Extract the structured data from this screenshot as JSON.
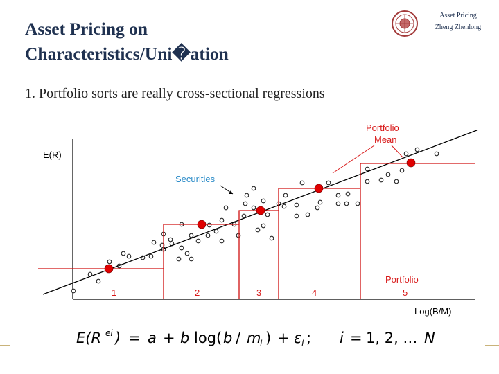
{
  "header": {
    "title_line1": "Asset Pricing on",
    "title_line2": "Characteristics/Uni�ation",
    "course": "Asset Pricing",
    "author": "Zheng Zhenlong"
  },
  "body": {
    "bullet": "1. Portfolio sorts are really cross-sectional regressions"
  },
  "diagram": {
    "y_axis_label": "E(R)",
    "x_axis_label": "Log(B/M)",
    "securities_label": "Securities",
    "portfolio_mean_label_line1": "Portfolio",
    "portfolio_mean_label_line2": "Mean",
    "portfolio_label": "Portfolio",
    "portfolio_numbers": [
      "1",
      "2",
      "3",
      "4",
      "5"
    ],
    "colors": {
      "step": "#d01010",
      "mean_dot": "#e00000",
      "label": "#d81818",
      "securities": "#2a8bc8"
    },
    "equation": "E(Rᵉⁱ) = a + b log(b / mᵢ) + εᵢ ;   i = 1, 2, …N"
  }
}
